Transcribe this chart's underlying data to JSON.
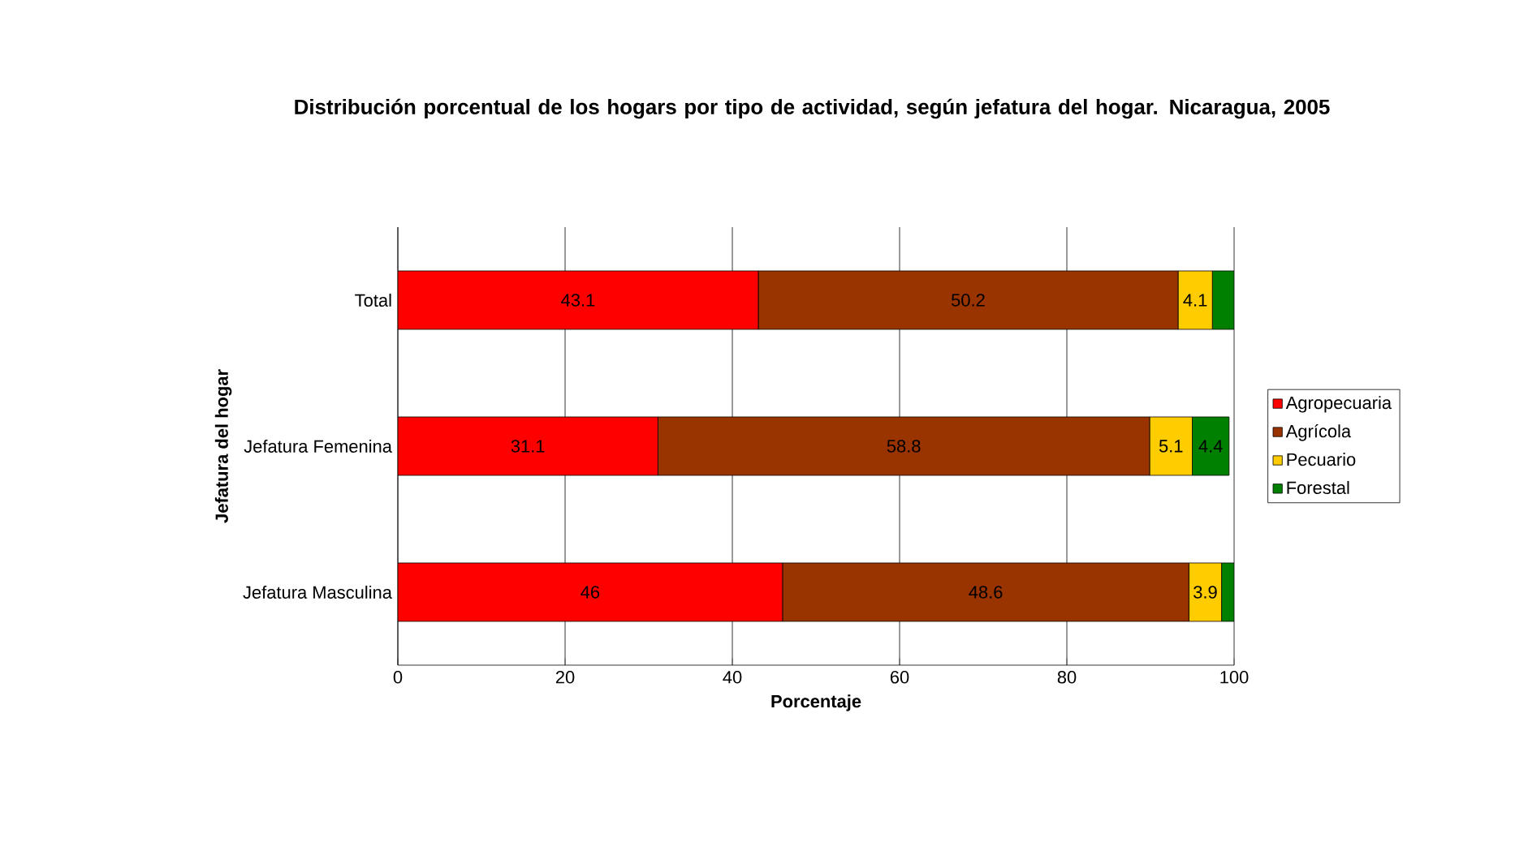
{
  "chart_data": {
    "type": "bar",
    "orientation": "horizontal",
    "stacked": true,
    "title": "Distribución porcentual de los hogars por tipo de actividad, según jefatura del hogar. Nicaragua, 2005",
    "xlabel": "Porcentaje",
    "ylabel": "Jefatura del hogar",
    "categories": [
      "Total",
      "Jefatura Femenina",
      "Jefatura Masculina"
    ],
    "series": [
      {
        "name": "Agropecuaria",
        "color": "#ff0000",
        "values": [
          43.1,
          31.1,
          46
        ],
        "value_labels": [
          "43.1",
          "31.1",
          "46"
        ]
      },
      {
        "name": "Agrícola",
        "color": "#993300",
        "values": [
          50.2,
          58.8,
          48.6
        ],
        "value_labels": [
          "50.2",
          "58.8",
          "48.6"
        ]
      },
      {
        "name": "Pecuario",
        "color": "#ffcc00",
        "values": [
          4.1,
          5.1,
          3.9
        ],
        "value_labels": [
          "4.1",
          "5.1",
          "3.9"
        ]
      },
      {
        "name": "Forestal",
        "color": "#008000",
        "values": [
          2.6,
          4.4,
          1.5
        ],
        "value_labels": [
          null,
          "4.4",
          null
        ]
      }
    ],
    "xlim": [
      0,
      100
    ],
    "xticks": [
      0,
      20,
      40,
      60,
      80,
      100
    ],
    "grid": "x",
    "legend": "right",
    "data_labels": false
  }
}
